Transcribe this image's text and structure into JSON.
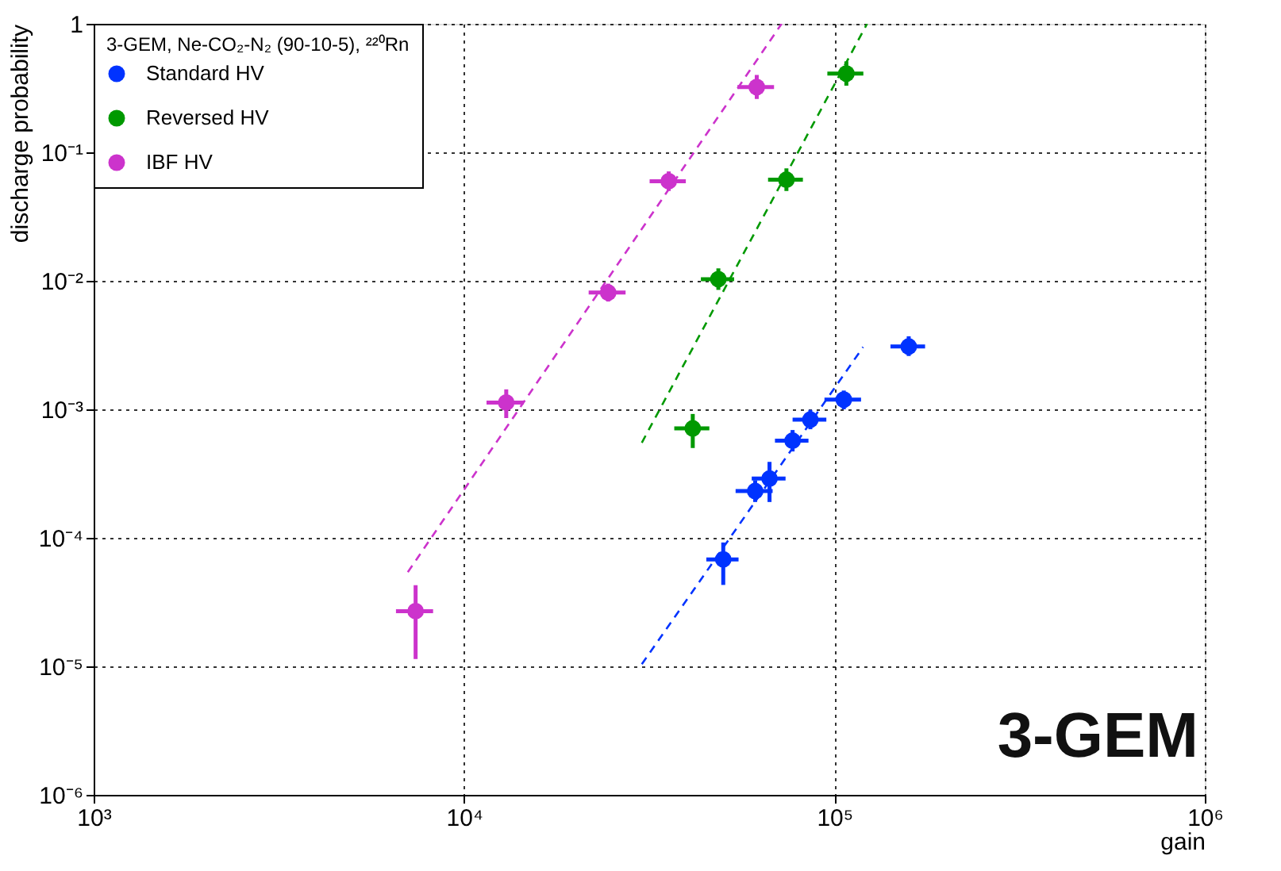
{
  "chart_data": {
    "type": "scatter",
    "xlabel": "gain",
    "ylabel": "discharge probability",
    "legend_title": "3-GEM, Ne-CO₂-N₂ (90-10-5), ²²⁰Rn",
    "legend": "top left",
    "log": "xy",
    "grid": true,
    "marker": "circle",
    "xlim": [
      1000,
      1000000
    ],
    "xticks": [
      {
        "value": 1000,
        "label": "10³"
      },
      {
        "value": 10000,
        "label": "10⁴"
      },
      {
        "value": 100000,
        "label": "10⁵"
      },
      {
        "value": 1000000,
        "label": "10⁶"
      }
    ],
    "ylim": [
      1e-06,
      1
    ],
    "yticks": [
      {
        "value": 1e-06,
        "label": "10⁻⁶"
      },
      {
        "value": 1e-05,
        "label": "10⁻⁵"
      },
      {
        "value": 0.0001,
        "label": "10⁻⁴"
      },
      {
        "value": 0.001,
        "label": "10⁻³"
      },
      {
        "value": 0.01,
        "label": "10⁻²"
      },
      {
        "value": 0.1,
        "label": "10⁻¹"
      },
      1
    ],
    "annotations": [
      "3-GEM"
    ],
    "series": [
      {
        "name": "Standard HV",
        "color": "#0033ff",
        "type": "scatter",
        "x": [
          158700,
          106000,
          86100,
          77100,
          66800,
          61100,
          50100
        ],
        "values": [
          0.00308,
          0.00119,
          0.00083,
          0.00057,
          0.000289,
          0.000231,
          6.8e-05
        ],
        "xerrors": [
          17000,
          12000,
          9000,
          8000,
          7000,
          7000,
          5000
        ],
        "errors": [
          [
            0.0026,
            0.0037
          ],
          [
            0.001,
            0.0014
          ],
          [
            0.0007,
            0.00099
          ],
          [
            0.00047,
            0.00069
          ],
          [
            0.00019,
            0.00039
          ],
          [
            0.00019,
            0.00028
          ],
          [
            4.3e-05,
            9.2e-05
          ]
        ]
      },
      {
        "name": "Reversed HV",
        "color": "#009900",
        "type": "scatter",
        "x": [
          107700,
          74200,
          48600,
          41450
        ],
        "values": [
          0.41,
          0.0612,
          0.0103,
          0.00071
        ],
        "xerrors": [
          12000,
          8000,
          5000,
          4500
        ],
        "errors": [
          [
            0.33,
            0.51
          ],
          [
            0.05,
            0.075
          ],
          [
            0.0085,
            0.0125
          ],
          [
            0.0005,
            0.00092
          ]
        ]
      },
      {
        "name": "IBF HV",
        "color": "#cc33cc",
        "type": "scatter",
        "x": [
          61700,
          35700,
          24500,
          13000,
          7400
        ],
        "values": [
          0.322,
          0.0596,
          0.0081,
          0.00113,
          2.69e-05
        ],
        "xerrors": [
          7000,
          4000,
          2800,
          1500,
          850
        ],
        "errors": [
          [
            0.26,
            0.4
          ],
          [
            0.05,
            0.071
          ],
          [
            0.0069,
            0.0095
          ],
          [
            0.000855,
            0.00143
          ],
          [
            1.14e-05,
            4.28e-05
          ]
        ]
      },
      {
        "type": "line",
        "marker": "none",
        "color": "#0033ff",
        "line_style": "dashed",
        "x": [
          30200,
          119500
        ],
        "values": [
          1.04e-05,
          0.00305
        ]
      },
      {
        "type": "line",
        "marker": "none",
        "color": "#009900",
        "line_style": "dashed",
        "x": [
          30200,
          122500
        ],
        "values": [
          0.00055,
          1
        ]
      },
      {
        "type": "line",
        "marker": "none",
        "color": "#cc33cc",
        "line_style": "dashed",
        "x": [
          7050,
          72000
        ],
        "values": [
          5.4e-05,
          1
        ]
      }
    ]
  }
}
